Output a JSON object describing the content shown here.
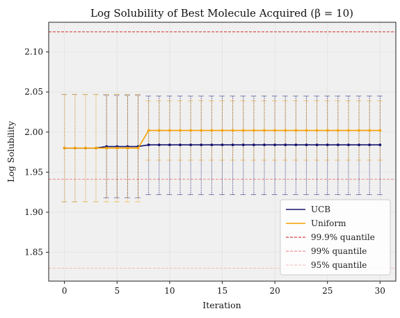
{
  "chart_data": {
    "type": "line",
    "title": "Log Solubility of Best Molecule Acquired (β = 10)",
    "xlabel": "Iteration",
    "ylabel": "Log Solubility",
    "xlim": [
      -1.5,
      31.5
    ],
    "ylim": [
      1.814,
      2.137
    ],
    "xticks": [
      0,
      5,
      10,
      15,
      20,
      25,
      30
    ],
    "yticks": [
      1.85,
      1.9,
      1.95,
      2.0,
      2.05,
      2.1
    ],
    "grid": true,
    "legend_position": "lower-right",
    "background": "#f0f0f0",
    "x": [
      0,
      1,
      2,
      3,
      4,
      5,
      6,
      7,
      8,
      9,
      10,
      11,
      12,
      13,
      14,
      15,
      16,
      17,
      18,
      19,
      20,
      21,
      22,
      23,
      24,
      25,
      26,
      27,
      28,
      29,
      30
    ],
    "series": [
      {
        "name": "UCB",
        "color": "#14146e",
        "values": [
          1.98,
          1.98,
          1.98,
          1.98,
          1.982,
          1.982,
          1.982,
          1.982,
          1.984,
          1.984,
          1.984,
          1.984,
          1.984,
          1.984,
          1.984,
          1.984,
          1.984,
          1.984,
          1.984,
          1.984,
          1.984,
          1.984,
          1.984,
          1.984,
          1.984,
          1.984,
          1.984,
          1.984,
          1.984,
          1.984,
          1.984
        ],
        "lower": [
          1.913,
          1.913,
          1.913,
          1.913,
          1.918,
          1.918,
          1.918,
          1.918,
          1.922,
          1.922,
          1.922,
          1.922,
          1.922,
          1.922,
          1.922,
          1.922,
          1.922,
          1.922,
          1.922,
          1.922,
          1.922,
          1.922,
          1.922,
          1.922,
          1.922,
          1.922,
          1.922,
          1.922,
          1.922,
          1.922,
          1.922
        ],
        "upper": [
          2.047,
          2.047,
          2.047,
          2.047,
          2.046,
          2.046,
          2.046,
          2.046,
          2.045,
          2.045,
          2.045,
          2.045,
          2.045,
          2.045,
          2.045,
          2.045,
          2.045,
          2.045,
          2.045,
          2.045,
          2.045,
          2.045,
          2.045,
          2.045,
          2.045,
          2.045,
          2.045,
          2.045,
          2.045,
          2.045,
          2.045
        ]
      },
      {
        "name": "Uniform",
        "color": "#f5a000",
        "values": [
          1.98,
          1.98,
          1.98,
          1.98,
          1.98,
          1.98,
          1.98,
          1.98,
          2.002,
          2.002,
          2.002,
          2.002,
          2.002,
          2.002,
          2.002,
          2.002,
          2.002,
          2.002,
          2.002,
          2.002,
          2.002,
          2.002,
          2.002,
          2.002,
          2.002,
          2.002,
          2.002,
          2.002,
          2.002,
          2.002,
          2.002
        ],
        "lower": [
          1.913,
          1.913,
          1.913,
          1.913,
          1.913,
          1.913,
          1.913,
          1.913,
          1.965,
          1.965,
          1.965,
          1.965,
          1.965,
          1.965,
          1.965,
          1.965,
          1.965,
          1.965,
          1.965,
          1.965,
          1.965,
          1.965,
          1.965,
          1.965,
          1.965,
          1.965,
          1.965,
          1.965,
          1.965,
          1.965,
          1.965
        ],
        "upper": [
          2.047,
          2.047,
          2.047,
          2.047,
          2.047,
          2.047,
          2.047,
          2.047,
          2.039,
          2.039,
          2.039,
          2.039,
          2.039,
          2.039,
          2.039,
          2.039,
          2.039,
          2.039,
          2.039,
          2.039,
          2.039,
          2.039,
          2.039,
          2.039,
          2.039,
          2.039,
          2.039,
          2.039,
          2.039,
          2.039,
          2.039
        ]
      }
    ],
    "reference_lines": [
      {
        "name": "99.9% quantile",
        "value": 2.125,
        "color": "#cc1111",
        "dash": "4,2",
        "width": 0.9
      },
      {
        "name": "99% quantile",
        "value": 1.941,
        "color": "#ee7777",
        "dash": "4,2",
        "width": 0.9
      },
      {
        "name": "95% quantile",
        "value": 1.83,
        "color": "#f5b5b5",
        "dash": "4,2",
        "width": 0.9
      }
    ]
  }
}
